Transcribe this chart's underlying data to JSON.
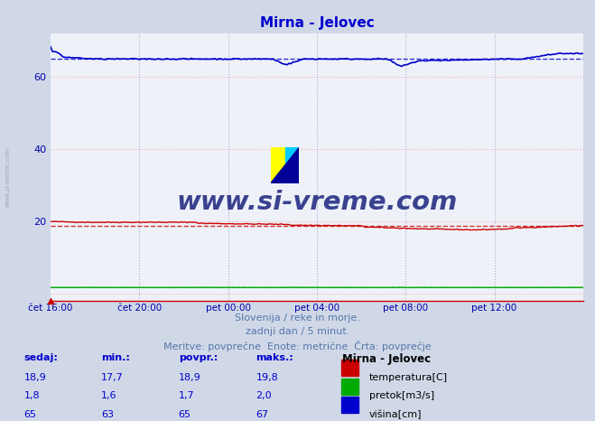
{
  "title": "Mirna - Jelovec",
  "title_color": "#0000cc",
  "bg_color": "#d0d8e8",
  "plot_bg_color": "#eef2f8",
  "grid_color_h": "#ffaaaa",
  "grid_color_v": "#aaaacc",
  "xlabel_ticks": [
    "čet 16:00",
    "čet 20:00",
    "pet 00:00",
    "pet 04:00",
    "pet 08:00",
    "pet 12:00"
  ],
  "yticks": [
    0,
    20,
    40,
    60
  ],
  "ylim": [
    -2,
    72
  ],
  "xlim": [
    0,
    288
  ],
  "n_points": 289,
  "temp_avg": 18.9,
  "pretok_avg": 1.7,
  "visina_avg": 65.0,
  "temp_color": "#cc0000",
  "pretok_color": "#00aa00",
  "visina_color": "#0000cc",
  "footer_line1": "Slovenija / reke in morje.",
  "footer_line2": "zadnji dan / 5 minut.",
  "footer_line3": "Meritve: povprečne  Enote: metrične  Črta: povprečje",
  "table_headers": [
    "sedaj:",
    "min.:",
    "povpr.:",
    "maks.:"
  ],
  "table_label": "Mirna - Jelovec",
  "table_rows": [
    [
      "18,9",
      "17,7",
      "18,9",
      "19,8"
    ],
    [
      "1,8",
      "1,6",
      "1,7",
      "2,0"
    ],
    [
      "65",
      "63",
      "65",
      "67"
    ]
  ],
  "series_labels": [
    "temperatura[C]",
    "pretok[m3/s]",
    "višina[cm]"
  ],
  "series_colors": [
    "#cc0000",
    "#00aa00",
    "#0000cc"
  ],
  "watermark_text": "www.si-vreme.com",
  "watermark_color": "#1a237e",
  "side_text": "www.si-vreme.com"
}
